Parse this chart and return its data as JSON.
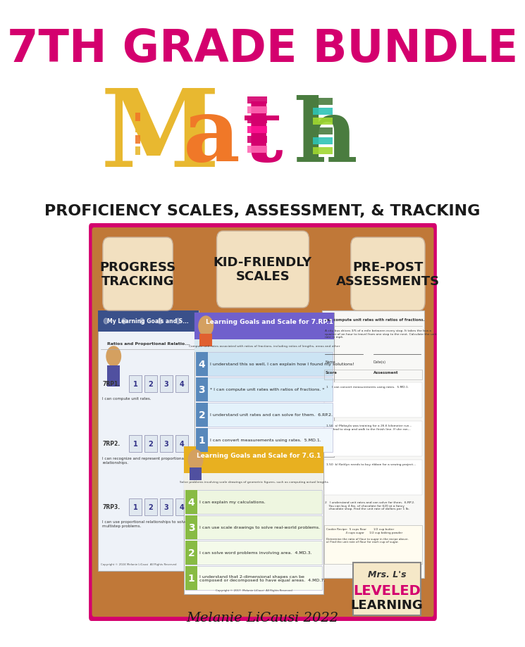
{
  "bg_color": "#ffffff",
  "title_line1": "7TH GRADE BUNDLE",
  "title_color": "#d4006e",
  "subtitle": "PROFICIENCY SCALES, ASSESSMENT, & TRACKING",
  "subtitle_color": "#1a1a1a",
  "panel_bg": "#c07838",
  "panel_border": "#d4006e",
  "label1": "PROGRESS\nTRACKING",
  "label2": "KID-FRIENDLY\nSCALES",
  "label3": "PRE-POST\nASSESSMENTS",
  "label_bg": "#f2e0c0",
  "label_text_color": "#1a1a1a",
  "footer": "Melanie LiCausi 2022",
  "footer_color": "#1a1a1a",
  "scale1_header_color": "#7060cc",
  "scale2_header_color": "#e8b020",
  "progress_sheet_header": "#3a508a",
  "math_M_color": "#e8b830",
  "math_a_color": "#f07828",
  "math_t_color": "#d4006e",
  "math_h_color": "#4a7c3f",
  "logo_leveled_color": "#d4006e",
  "logo_learning_color": "#1a1a1a",
  "logo_bg": "#f5e8c8"
}
